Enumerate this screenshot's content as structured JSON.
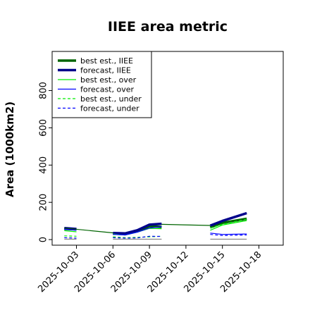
{
  "chart_data": {
    "type": "line",
    "title": "IIEE area metric",
    "ylabel": "Area (1000km2)",
    "xlabel": "",
    "xlim": [
      "2025-10-01",
      "2025-10-20"
    ],
    "ylim": [
      -30,
      1010
    ],
    "x_ticks": [
      "2025-10-03",
      "2025-10-06",
      "2025-10-09",
      "2025-10-12",
      "2025-10-15",
      "2025-10-18"
    ],
    "highlighted_tick": "2025-10-09",
    "highlight_color": "#2e8b2e",
    "y_ticks": [
      0,
      200,
      400,
      600,
      800
    ],
    "grid": false,
    "legend_position": "upper left",
    "series": [
      {
        "name": "best est., IIEE",
        "color": "#006400",
        "style": "solid",
        "weight": "thick",
        "segments": [
          [
            [
              "2025-10-02",
              58
            ],
            [
              "2025-10-03",
              55
            ]
          ],
          [
            [
              "2025-10-06",
              32
            ],
            [
              "2025-10-07",
              30
            ],
            [
              "2025-10-08",
              45
            ],
            [
              "2025-10-09",
              72
            ],
            [
              "2025-10-10",
              68
            ]
          ],
          [
            [
              "2025-10-14",
              65
            ],
            [
              "2025-10-15",
              90
            ],
            [
              "2025-10-17",
              112
            ]
          ]
        ]
      },
      {
        "name": "forecast, IIEE",
        "color": "#00008b",
        "style": "solid",
        "weight": "thick",
        "segments": [
          [
            [
              "2025-10-02",
              62
            ],
            [
              "2025-10-03",
              57
            ]
          ],
          [
            [
              "2025-10-06",
              35
            ],
            [
              "2025-10-07",
              33
            ],
            [
              "2025-10-08",
              50
            ],
            [
              "2025-10-09",
              80
            ],
            [
              "2025-10-10",
              85
            ]
          ],
          [
            [
              "2025-10-14",
              75
            ],
            [
              "2025-10-15",
              100
            ],
            [
              "2025-10-17",
              142
            ]
          ]
        ]
      },
      {
        "name": "best est., over",
        "color": "#00ee00",
        "style": "solid",
        "weight": "thin",
        "segments": [
          [
            [
              "2025-10-02",
              48
            ],
            [
              "2025-10-03",
              42
            ]
          ],
          [
            [
              "2025-10-06",
              30
            ],
            [
              "2025-10-07",
              24
            ],
            [
              "2025-10-08",
              40
            ],
            [
              "2025-10-09",
              60
            ],
            [
              "2025-10-10",
              58
            ]
          ],
          [
            [
              "2025-10-14",
              50
            ],
            [
              "2025-10-15",
              78
            ],
            [
              "2025-10-17",
              102
            ]
          ]
        ]
      },
      {
        "name": "forecast, over",
        "color": "#0000ff",
        "style": "solid",
        "weight": "thin",
        "segments": [
          [
            [
              "2025-10-02",
              55
            ],
            [
              "2025-10-03",
              50
            ]
          ],
          [
            [
              "2025-10-06",
              28
            ],
            [
              "2025-10-07",
              25
            ],
            [
              "2025-10-08",
              40
            ],
            [
              "2025-10-09",
              62
            ],
            [
              "2025-10-10",
              70
            ]
          ],
          [
            [
              "2025-10-14",
              35
            ],
            [
              "2025-10-15",
              28
            ],
            [
              "2025-10-17",
              30
            ]
          ]
        ]
      },
      {
        "name": "best est., under",
        "color": "#00ee00",
        "style": "dashed",
        "weight": "thin",
        "segments": [
          [
            [
              "2025-10-02",
              20
            ],
            [
              "2025-10-03",
              18
            ]
          ],
          [
            [
              "2025-10-06",
              15
            ],
            [
              "2025-10-07",
              10
            ],
            [
              "2025-10-08",
              12
            ],
            [
              "2025-10-09",
              15
            ],
            [
              "2025-10-10",
              18
            ]
          ],
          [
            [
              "2025-10-14",
              62
            ],
            [
              "2025-10-15",
              82
            ],
            [
              "2025-10-17",
              110
            ]
          ]
        ]
      },
      {
        "name": "forecast, under",
        "color": "#0000ff",
        "style": "dashed",
        "weight": "thin",
        "segments": [
          [
            [
              "2025-10-02",
              10
            ],
            [
              "2025-10-03",
              8
            ]
          ],
          [
            [
              "2025-10-06",
              10
            ],
            [
              "2025-10-07",
              8
            ],
            [
              "2025-10-08",
              9
            ],
            [
              "2025-10-09",
              18
            ],
            [
              "2025-10-10",
              17
            ]
          ],
          [
            [
              "2025-10-14",
              28
            ],
            [
              "2025-10-15",
              22
            ],
            [
              "2025-10-17",
              25
            ]
          ]
        ]
      },
      {
        "name": "",
        "color": "#006400",
        "style": "solid",
        "weight": "thin",
        "segments": [
          [
            [
              "2025-10-02",
              62
            ],
            [
              "2025-10-06",
              36
            ]
          ],
          [
            [
              "2025-10-10",
              82
            ],
            [
              "2025-10-14",
              76
            ]
          ]
        ]
      },
      {
        "name": "",
        "color": "#888888",
        "style": "solid",
        "weight": "thin",
        "segments": [
          [
            [
              "2025-10-02",
              2
            ],
            [
              "2025-10-03",
              2
            ]
          ],
          [
            [
              "2025-10-06",
              2
            ],
            [
              "2025-10-10",
              2
            ]
          ],
          [
            [
              "2025-10-14",
              2
            ],
            [
              "2025-10-17",
              2
            ]
          ]
        ]
      }
    ]
  }
}
